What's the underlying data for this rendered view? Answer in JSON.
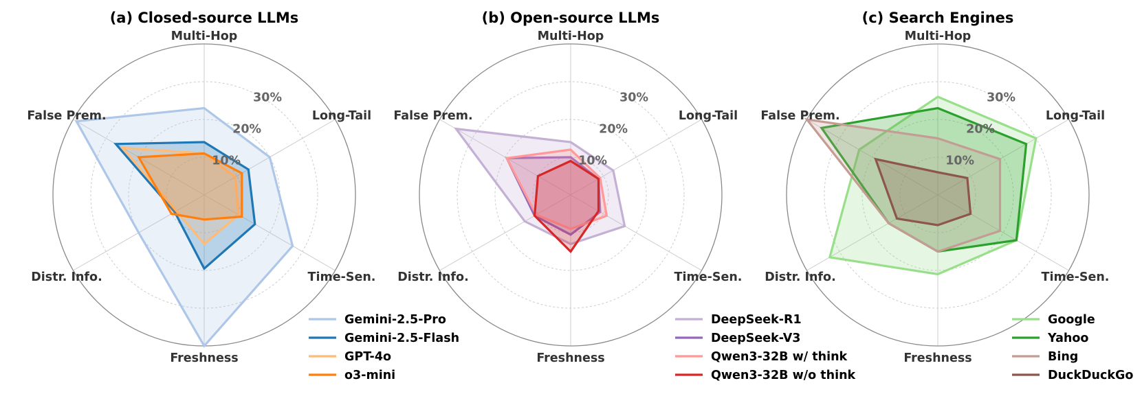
{
  "chart_data": [
    {
      "type": "radar",
      "title": "(a) Closed-source LLMs",
      "axes": [
        "Multi-Hop",
        "Long-Tail",
        "Time-Sen.",
        "Freshness",
        "Distr. Info.",
        "False Prem."
      ],
      "r_ticks": [
        10,
        20,
        30
      ],
      "r_tick_labels": [
        "10%",
        "20%",
        "30%"
      ],
      "r_max": 40,
      "series": [
        {
          "name": "Gemini-2.5-Pro",
          "color": "#aec7e8",
          "values": [
            23,
            20,
            27,
            40,
            20,
            39
          ]
        },
        {
          "name": "Gemini-2.5-Flash",
          "color": "#1f77b4",
          "values": [
            14,
            13.5,
            15.5,
            19.5,
            9,
            27
          ]
        },
        {
          "name": "GPT-4o",
          "color": "#ffbb78",
          "values": [
            11,
            9.5,
            10.5,
            13,
            8.5,
            25
          ]
        },
        {
          "name": "o3-mini",
          "color": "#ff7f0e",
          "values": [
            11,
            11.5,
            11.5,
            6.5,
            10,
            20
          ]
        }
      ]
    },
    {
      "type": "radar",
      "title": "(b) Open-source LLMs",
      "axes": [
        "Multi-Hop",
        "Long-Tail",
        "Time-Sen.",
        "Freshness",
        "Distr. Info.",
        "False Prem."
      ],
      "r_ticks": [
        10,
        20,
        30
      ],
      "r_tick_labels": [
        "10%",
        "20%",
        "30%"
      ],
      "r_max": 40,
      "series": [
        {
          "name": "DeepSeek-R1",
          "color": "#c5b0d5",
          "values": [
            14,
            13,
            16.5,
            13,
            14,
            35
          ]
        },
        {
          "name": "DeepSeek-V3",
          "color": "#9467bd",
          "values": [
            10,
            8.5,
            9,
            10.5,
            11,
            19.5
          ]
        },
        {
          "name": "Qwen3-32B w/ think",
          "color": "#ff9896",
          "values": [
            12,
            9,
            11,
            9,
            10.5,
            19.5
          ]
        },
        {
          "name": "Qwen3-32B w/o think",
          "color": "#d62728",
          "values": [
            9,
            8.5,
            8.5,
            15,
            11,
            10
          ]
        }
      ]
    },
    {
      "type": "radar",
      "title": "(c) Search Engines",
      "axes": [
        "Multi-Hop",
        "Long-Tail",
        "Time-Sen.",
        "Freshness",
        "Distr. Info.",
        "False Prem."
      ],
      "r_ticks": [
        10,
        20,
        30
      ],
      "r_tick_labels": [
        "10%",
        "20%",
        "30%"
      ],
      "r_max": 40,
      "series": [
        {
          "name": "Google",
          "color": "#98df8a",
          "values": [
            26,
            30,
            24,
            21,
            33,
            24
          ]
        },
        {
          "name": "Yahoo",
          "color": "#2ca02c",
          "values": [
            23,
            27,
            24,
            15,
            15,
            35.5
          ]
        },
        {
          "name": "Bing",
          "color": "#c49c94",
          "values": [
            15,
            19,
            19,
            15,
            15,
            40
          ]
        },
        {
          "name": "DuckDuckGo",
          "color": "#8c564b",
          "values": [
            6,
            9,
            10,
            8,
            12.5,
            19
          ]
        }
      ]
    }
  ]
}
